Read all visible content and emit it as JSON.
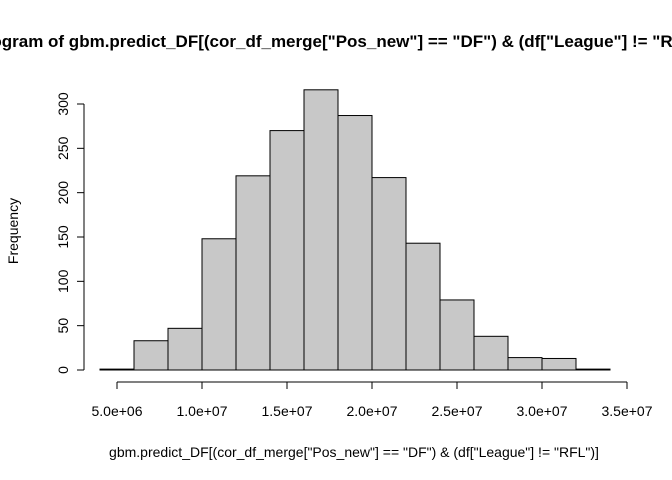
{
  "chart_data": {
    "type": "bar",
    "title": "Histogram of gbm.predict_DF[(cor_df_merge[\"Pos_new\"] == \"DF\") & (df[\"League\"] != \"RFL\")]",
    "xlabel": "gbm.predict_DF[(cor_df_merge[\"Pos_new\"] == \"DF\") & (df[\"League\"] != \"RFL\")]",
    "ylabel": "Frequency",
    "bins": [
      {
        "x0": 4000000,
        "x1": 6000000,
        "count": 1
      },
      {
        "x0": 6000000,
        "x1": 8000000,
        "count": 33
      },
      {
        "x0": 8000000,
        "x1": 10000000,
        "count": 47
      },
      {
        "x0": 10000000,
        "x1": 12000000,
        "count": 148
      },
      {
        "x0": 12000000,
        "x1": 14000000,
        "count": 219
      },
      {
        "x0": 14000000,
        "x1": 16000000,
        "count": 270
      },
      {
        "x0": 16000000,
        "x1": 18000000,
        "count": 316
      },
      {
        "x0": 18000000,
        "x1": 20000000,
        "count": 287
      },
      {
        "x0": 20000000,
        "x1": 22000000,
        "count": 217
      },
      {
        "x0": 22000000,
        "x1": 24000000,
        "count": 143
      },
      {
        "x0": 24000000,
        "x1": 26000000,
        "count": 79
      },
      {
        "x0": 26000000,
        "x1": 28000000,
        "count": 38
      },
      {
        "x0": 28000000,
        "x1": 30000000,
        "count": 14
      },
      {
        "x0": 30000000,
        "x1": 32000000,
        "count": 13
      },
      {
        "x0": 32000000,
        "x1": 34000000,
        "count": 1
      }
    ],
    "x_ticks": [
      {
        "value": 5000000,
        "label": "5.0e+06"
      },
      {
        "value": 10000000,
        "label": "1.0e+07"
      },
      {
        "value": 15000000,
        "label": "1.5e+07"
      },
      {
        "value": 20000000,
        "label": "2.0e+07"
      },
      {
        "value": 25000000,
        "label": "2.5e+07"
      },
      {
        "value": 30000000,
        "label": "3.0e+07"
      },
      {
        "value": 35000000,
        "label": "3.5e+07"
      }
    ],
    "y_ticks": [
      {
        "value": 0,
        "label": "0"
      },
      {
        "value": 50,
        "label": "50"
      },
      {
        "value": 100,
        "label": "100"
      },
      {
        "value": 150,
        "label": "150"
      },
      {
        "value": 200,
        "label": "200"
      },
      {
        "value": 250,
        "label": "250"
      },
      {
        "value": 300,
        "label": "300"
      }
    ],
    "xlim": [
      4000000,
      35000000
    ],
    "ylim": [
      0,
      316
    ],
    "bar_color": "#c8c8c8",
    "grid": false,
    "legend": "none"
  }
}
